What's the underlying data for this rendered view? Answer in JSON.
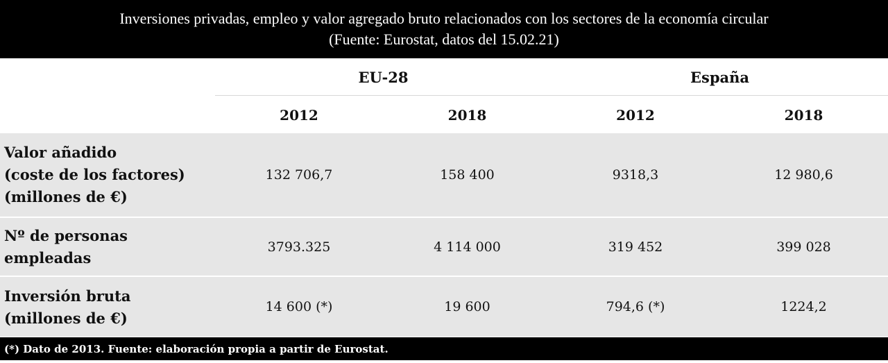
{
  "title": {
    "line1": "Inversiones privadas, empleo y valor agregado bruto relacionados con los sectores de la economía circular",
    "line2": "(Fuente: Eurostat, datos del 15.02.21)"
  },
  "groups": {
    "eu": "EU-28",
    "es": "España"
  },
  "years": [
    "2012",
    "2018",
    "2012",
    "2018"
  ],
  "rows": [
    {
      "label": [
        "Valor añadido",
        "(coste de los factores)",
        "(millones de €)"
      ],
      "values": [
        "132 706,7",
        "158 400",
        "9318,3",
        "12 980,6"
      ]
    },
    {
      "label": [
        "Nº de personas",
        "empleadas"
      ],
      "values": [
        "3793.325",
        "4 114 000",
        "319 452",
        "399 028"
      ]
    },
    {
      "label": [
        "Inversión bruta",
        "(millones de €)"
      ],
      "values": [
        "14 600 (*)",
        "19 600",
        "794,6 (*)",
        "1224,2"
      ]
    }
  ],
  "footnote": "(*) Dato de 2013. Fuente: elaboración propia a partir de Eurostat.",
  "colors": {
    "header_bg": "#000000",
    "row_bg": "#e6e6e6",
    "text": "#111111"
  }
}
